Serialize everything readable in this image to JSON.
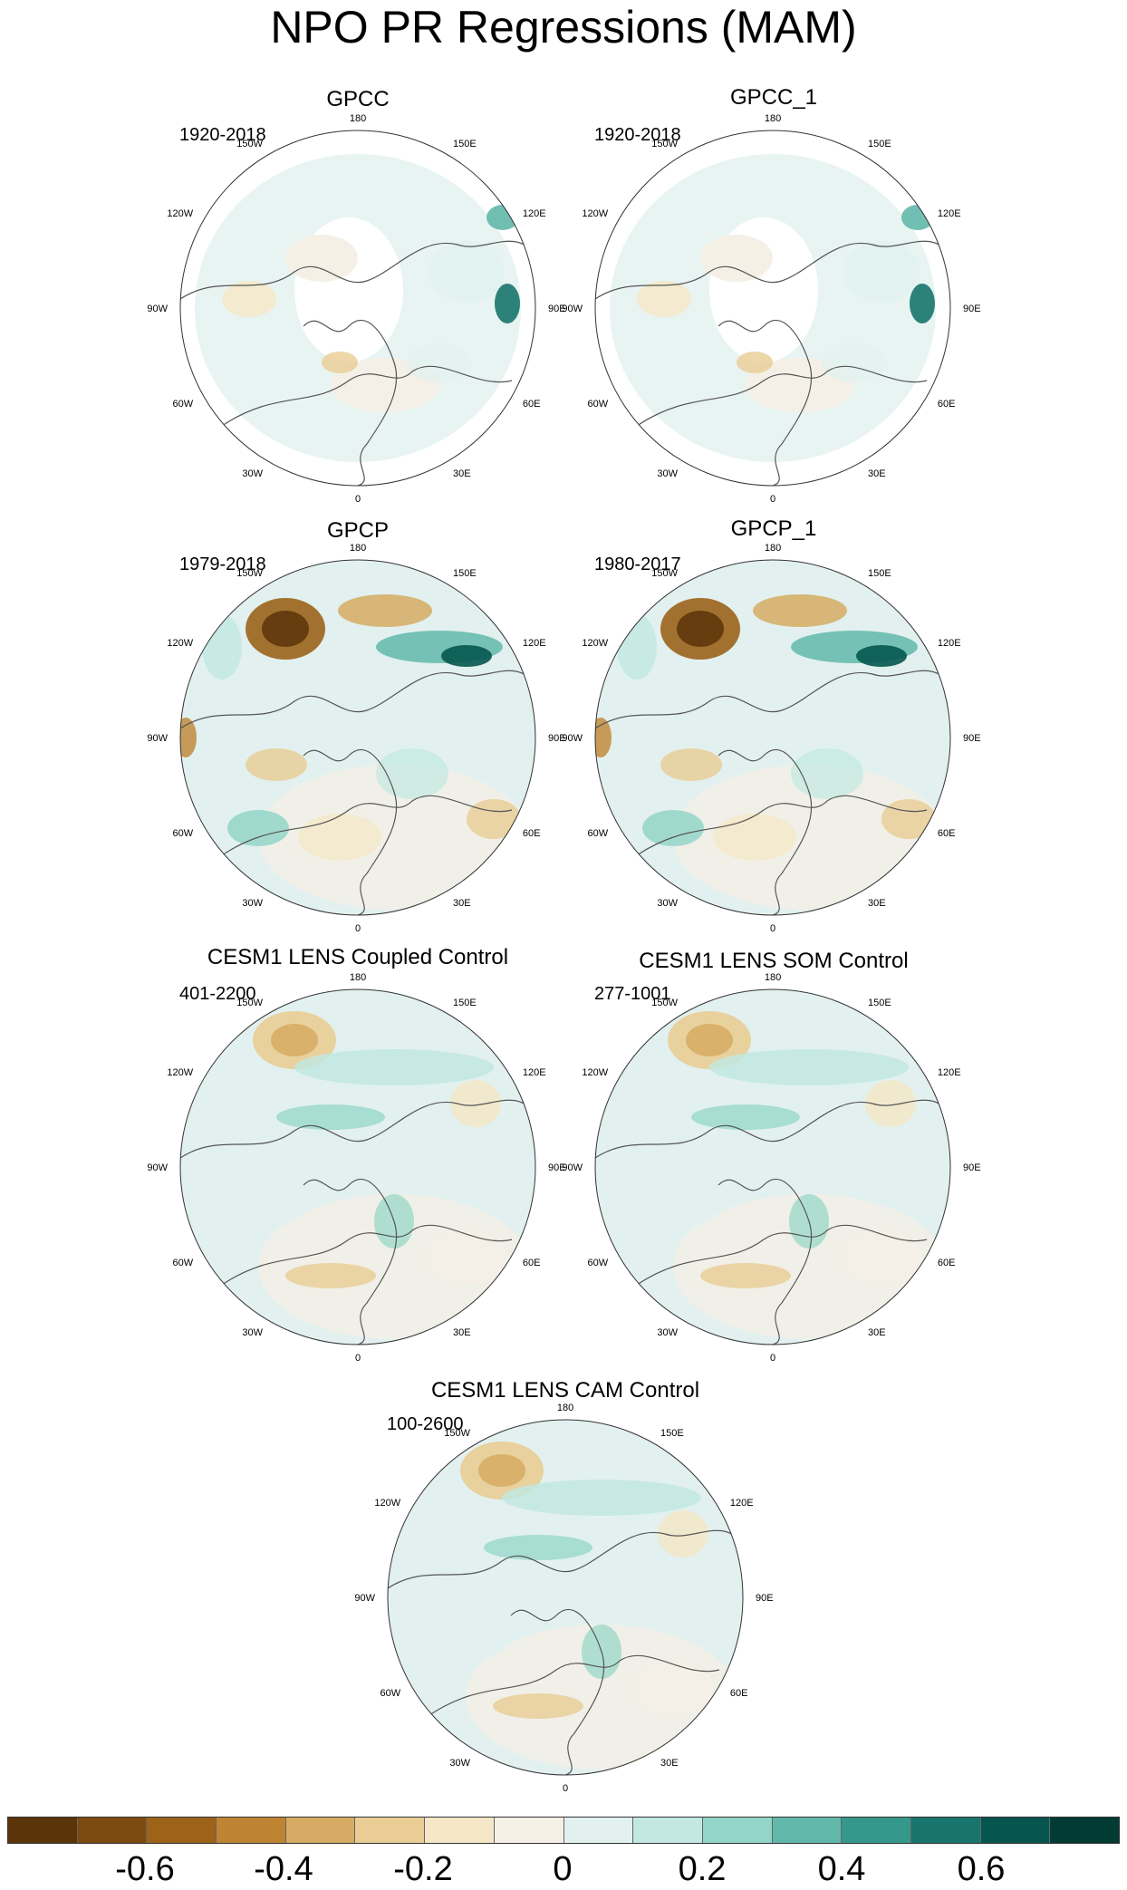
{
  "title": "NPO PR Regressions (MAM)",
  "lon_labels": [
    "180",
    "150E",
    "120E",
    "90E",
    "60E",
    "30E",
    "0",
    "30W",
    "60W",
    "90W",
    "120W",
    "150W"
  ],
  "panels": [
    {
      "title": "GPCC",
      "period": "1920-2018",
      "style": "sparse"
    },
    {
      "title": "GPCC_1",
      "period": "1920-2018",
      "style": "sparse"
    },
    {
      "title": "GPCP",
      "period": "1979-2018",
      "style": "strong"
    },
    {
      "title": "GPCP_1",
      "period": "1980-2017",
      "style": "strong"
    },
    {
      "title": "CESM1 LENS Coupled Control",
      "period": "401-2200",
      "style": "weak"
    },
    {
      "title": "CESM1 LENS SOM Control",
      "period": "277-1001",
      "style": "weak"
    },
    {
      "title": "CESM1 LENS CAM Control",
      "period": "100-2600",
      "style": "weak"
    }
  ],
  "colorbar": {
    "colors": [
      "#5b3409",
      "#7d4a10",
      "#9c6319",
      "#bf8432",
      "#d6ab63",
      "#e9cd94",
      "#f5e7c6",
      "#f5f0e6",
      "#e2f1ef",
      "#c2e8e1",
      "#93d5c8",
      "#62b8aa",
      "#36978c",
      "#17756c",
      "#06564e",
      "#013b33"
    ],
    "labels": [
      "-0.6",
      "-0.4",
      "-0.2",
      "0",
      "0.2",
      "0.4",
      "0.6"
    ]
  }
}
